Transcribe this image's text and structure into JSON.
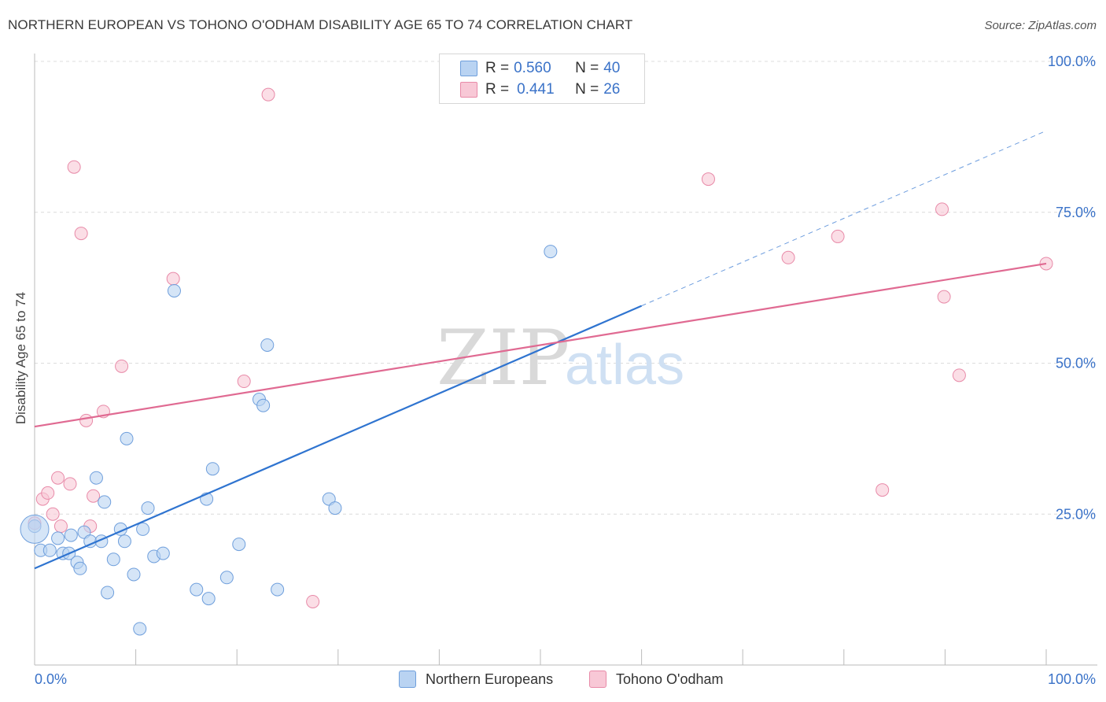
{
  "title": "NORTHERN EUROPEAN VS TOHONO O'ODHAM DISABILITY AGE 65 TO 74 CORRELATION CHART",
  "source": "Source: ZipAtlas.com",
  "watermark": {
    "zip": "ZIP",
    "atlas": "atlas"
  },
  "legend": {
    "rows": [
      {
        "r_label": "R =",
        "r_value": "0.560",
        "n_label": "N =",
        "n_value": "40"
      },
      {
        "r_label": "R =",
        "r_value": "0.441",
        "n_label": "N =",
        "n_value": "26"
      }
    ]
  },
  "colors": {
    "blue_fill": "#b9d3f2",
    "blue_stroke": "#6f9fdc",
    "blue_line": "#2f74d0",
    "pink_fill": "#f8c8d6",
    "pink_stroke": "#e88aa8",
    "pink_line": "#e06a92",
    "tick_label": "#3a72c8",
    "grid": "#dcdcdc"
  },
  "chart_data": {
    "type": "scatter",
    "xlabel": "",
    "ylabel": "Disability Age 65 to 74",
    "xlim": [
      0,
      100
    ],
    "ylim": [
      0,
      100
    ],
    "x_tick_labels": [
      "0.0%",
      "100.0%"
    ],
    "y_tick_labels": [
      "25.0%",
      "50.0%",
      "75.0%",
      "100.0%"
    ],
    "y_ticks": [
      25,
      50,
      75,
      100
    ],
    "series": [
      {
        "name": "Northern Europeans",
        "color": "#6f9fdc",
        "points": [
          [
            0,
            23
          ],
          [
            0.6,
            19
          ],
          [
            1.5,
            19
          ],
          [
            2.3,
            21
          ],
          [
            2.8,
            18.5
          ],
          [
            3.4,
            18.5
          ],
          [
            3.6,
            21.5
          ],
          [
            4.2,
            17
          ],
          [
            4.5,
            16
          ],
          [
            4.9,
            22
          ],
          [
            5.5,
            20.5
          ],
          [
            6.1,
            31
          ],
          [
            6.6,
            20.5
          ],
          [
            6.9,
            27
          ],
          [
            7.2,
            12
          ],
          [
            7.8,
            17.5
          ],
          [
            8.5,
            22.5
          ],
          [
            8.9,
            20.5
          ],
          [
            9.1,
            37.5
          ],
          [
            9.8,
            15
          ],
          [
            10.4,
            6
          ],
          [
            10.7,
            22.5
          ],
          [
            11.2,
            26
          ],
          [
            11.8,
            18
          ],
          [
            12.7,
            18.5
          ],
          [
            13.8,
            62
          ],
          [
            16,
            12.5
          ],
          [
            17,
            27.5
          ],
          [
            17.2,
            11
          ],
          [
            17.6,
            32.5
          ],
          [
            19,
            14.5
          ],
          [
            20.2,
            20
          ],
          [
            22.2,
            44
          ],
          [
            22.6,
            43
          ],
          [
            23,
            53
          ],
          [
            24,
            12.5
          ],
          [
            29.1,
            27.5
          ],
          [
            29.7,
            26
          ],
          [
            51,
            68.5
          ],
          [
            0,
            22.5
          ]
        ]
      },
      {
        "name": "Tohono O'odham",
        "color": "#e88aa8",
        "points": [
          [
            0,
            23.5
          ],
          [
            0.8,
            27.5
          ],
          [
            1.3,
            28.5
          ],
          [
            1.8,
            25
          ],
          [
            2.3,
            31
          ],
          [
            2.6,
            23
          ],
          [
            3.5,
            30
          ],
          [
            3.9,
            82.5
          ],
          [
            4.6,
            71.5
          ],
          [
            5.1,
            40.5
          ],
          [
            5.5,
            23
          ],
          [
            5.8,
            28
          ],
          [
            6.8,
            42
          ],
          [
            8.6,
            49.5
          ],
          [
            13.7,
            64
          ],
          [
            20.7,
            47
          ],
          [
            23.1,
            94.5
          ],
          [
            27.5,
            10.5
          ],
          [
            66.6,
            80.5
          ],
          [
            74.5,
            67.5
          ],
          [
            79.4,
            71
          ],
          [
            83.8,
            29
          ],
          [
            89.7,
            75.5
          ],
          [
            89.9,
            61
          ],
          [
            91.4,
            48
          ],
          [
            100,
            66.5
          ]
        ]
      }
    ],
    "trendlines": [
      {
        "series": "Northern Europeans",
        "x": [
          0,
          60
        ],
        "y": [
          16,
          59.5
        ],
        "dashed_extension_to": [
          100,
          88.5
        ]
      },
      {
        "series": "Tohono O'odham",
        "x": [
          0,
          100
        ],
        "y": [
          39.5,
          66.5
        ]
      }
    ],
    "grid": "horizontal dashed",
    "legend_placement": "top-center and bottom"
  },
  "bottom_legend": {
    "item1": "Northern Europeans",
    "item2": "Tohono O'odham"
  }
}
